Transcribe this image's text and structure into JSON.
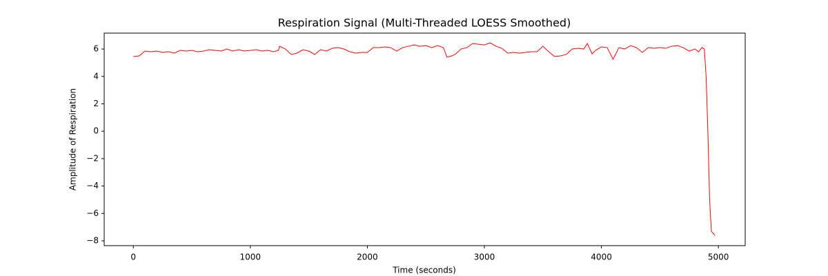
{
  "chart_data": {
    "type": "line",
    "title": "Respiration Signal (Multi-Threaded LOESS Smoothed)",
    "xlabel": "Time (seconds)",
    "ylabel": "Amplitude of Respiration",
    "x": [
      0,
      50,
      100,
      150,
      200,
      250,
      300,
      350,
      400,
      450,
      500,
      550,
      600,
      650,
      700,
      750,
      800,
      850,
      900,
      950,
      1000,
      1050,
      1100,
      1150,
      1200,
      1240,
      1250,
      1300,
      1350,
      1400,
      1450,
      1500,
      1550,
      1600,
      1650,
      1700,
      1750,
      1800,
      1850,
      1900,
      1950,
      2000,
      2050,
      2100,
      2150,
      2200,
      2250,
      2300,
      2350,
      2400,
      2450,
      2500,
      2550,
      2600,
      2650,
      2680,
      2720,
      2750,
      2800,
      2850,
      2900,
      2950,
      3000,
      3050,
      3100,
      3150,
      3200,
      3250,
      3300,
      3350,
      3400,
      3450,
      3500,
      3550,
      3600,
      3650,
      3700,
      3750,
      3800,
      3850,
      3880,
      3920,
      3950,
      4000,
      4050,
      4100,
      4150,
      4200,
      4250,
      4300,
      4350,
      4400,
      4450,
      4500,
      4550,
      4600,
      4650,
      4700,
      4750,
      4800,
      4830,
      4860,
      4880,
      4895,
      4910,
      4925,
      4940,
      4970
    ],
    "series": [
      {
        "name": "Respiration",
        "color": "#ff0000",
        "values": [
          5.45,
          5.5,
          5.85,
          5.8,
          5.85,
          5.75,
          5.8,
          5.7,
          5.9,
          5.85,
          5.9,
          5.8,
          5.85,
          5.95,
          5.9,
          5.85,
          6.0,
          5.85,
          5.95,
          5.85,
          5.9,
          5.95,
          5.85,
          5.9,
          5.8,
          5.9,
          6.2,
          6.0,
          5.6,
          5.7,
          5.95,
          5.85,
          5.6,
          5.95,
          5.85,
          6.05,
          6.1,
          6.0,
          5.8,
          5.7,
          5.75,
          5.75,
          6.1,
          6.1,
          6.15,
          6.1,
          5.85,
          6.1,
          6.2,
          6.3,
          6.2,
          6.25,
          6.1,
          6.25,
          6.1,
          5.4,
          5.5,
          5.6,
          6.0,
          6.1,
          6.4,
          6.35,
          6.3,
          6.45,
          6.2,
          6.05,
          5.7,
          5.75,
          5.7,
          5.75,
          5.8,
          5.8,
          6.2,
          5.8,
          5.45,
          5.5,
          5.6,
          6.0,
          6.05,
          6.0,
          6.4,
          5.65,
          5.9,
          6.15,
          6.1,
          5.25,
          6.1,
          6.0,
          6.25,
          6.1,
          5.75,
          6.1,
          6.05,
          6.1,
          6.05,
          6.2,
          6.25,
          6.1,
          5.85,
          6.0,
          5.8,
          6.1,
          6.0,
          4.0,
          0,
          -5,
          -7.3,
          -7.6
        ]
      }
    ],
    "xlim": [
      -249,
      5229
    ],
    "ylim": [
      -8.35,
      7.16
    ],
    "xticks": [
      0,
      1000,
      2000,
      3000,
      4000,
      5000
    ],
    "yticks": [
      {
        "value": -8,
        "label": "−8"
      },
      {
        "value": -6,
        "label": "−6"
      },
      {
        "value": -4,
        "label": "−4"
      },
      {
        "value": -2,
        "label": "−2"
      },
      0,
      2,
      4,
      6
    ],
    "grid": false
  }
}
